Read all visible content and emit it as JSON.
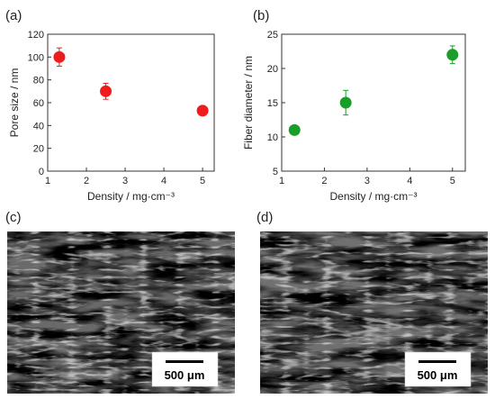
{
  "panels": {
    "a": "(a)",
    "b": "(b)",
    "c": "(c)",
    "d": "(d)"
  },
  "scale_bars": {
    "c": "500 μm",
    "d": "500 μm"
  },
  "chart_data": [
    {
      "type": "scatter",
      "title": "",
      "xlabel": "Density / mg·cm⁻³",
      "ylabel": "Pore size  / nm",
      "xlim": [
        1,
        5.3
      ],
      "ylim": [
        0,
        120
      ],
      "xticks": [
        "1",
        "2",
        "3",
        "4",
        "5"
      ],
      "yticks": [
        "0",
        "20",
        "40",
        "60",
        "80",
        "100",
        "120"
      ],
      "color": "#ee1c1c",
      "points": [
        {
          "x": 1.3,
          "y": 100,
          "err": 8
        },
        {
          "x": 2.5,
          "y": 70,
          "err": 7
        },
        {
          "x": 5.0,
          "y": 53,
          "err": 0
        }
      ]
    },
    {
      "type": "scatter",
      "title": "",
      "xlabel": "Density / mg·cm⁻³",
      "ylabel": "Fiber diameter / nm",
      "xlim": [
        1,
        5.3
      ],
      "ylim": [
        5,
        25
      ],
      "xticks": [
        "1",
        "2",
        "3",
        "4",
        "5"
      ],
      "yticks": [
        "5",
        "10",
        "15",
        "20",
        "25"
      ],
      "color": "#1a9e2a",
      "points": [
        {
          "x": 1.3,
          "y": 11,
          "err": 0
        },
        {
          "x": 2.5,
          "y": 15,
          "err": 1.8
        },
        {
          "x": 5.0,
          "y": 22,
          "err": 1.3
        }
      ]
    }
  ]
}
